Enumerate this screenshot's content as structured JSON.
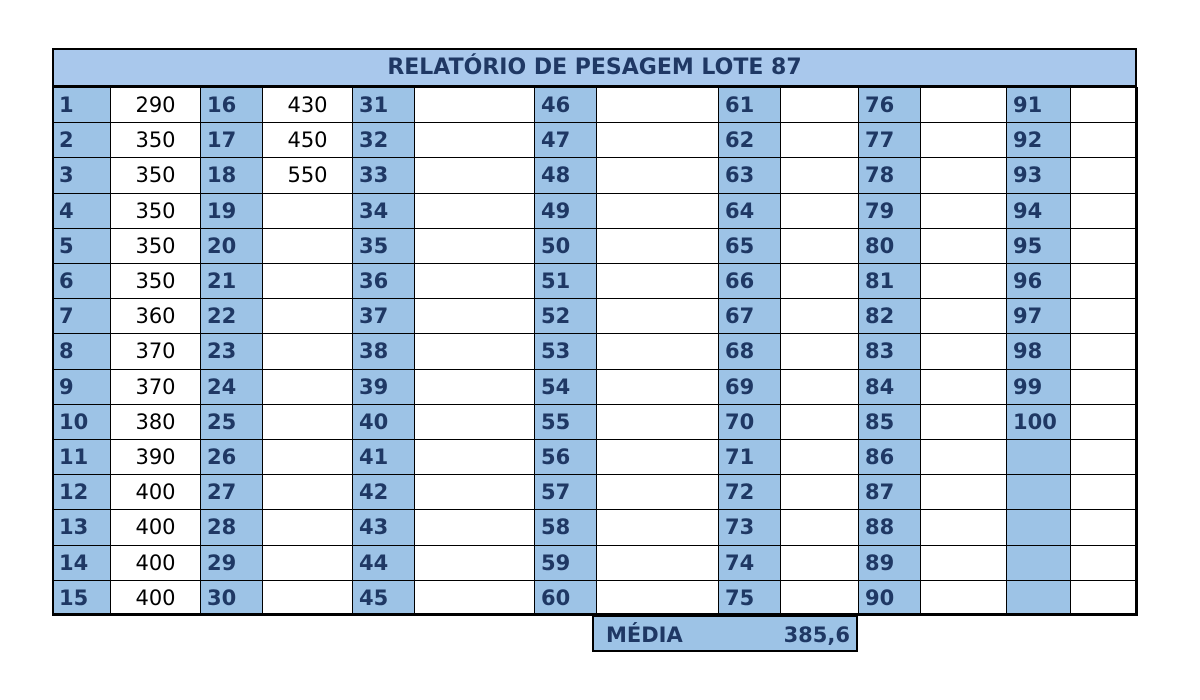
{
  "table": {
    "title": "RELATÓRIO DE PESAGEM LOTE 87",
    "groups": [
      [
        {
          "id": 1,
          "weight": 290
        },
        {
          "id": 2,
          "weight": 350
        },
        {
          "id": 3,
          "weight": 350
        },
        {
          "id": 4,
          "weight": 350
        },
        {
          "id": 5,
          "weight": 350
        },
        {
          "id": 6,
          "weight": 350
        },
        {
          "id": 7,
          "weight": 360
        },
        {
          "id": 8,
          "weight": 370
        },
        {
          "id": 9,
          "weight": 370
        },
        {
          "id": 10,
          "weight": 380
        },
        {
          "id": 11,
          "weight": 390
        },
        {
          "id": 12,
          "weight": 400
        },
        {
          "id": 13,
          "weight": 400
        },
        {
          "id": 14,
          "weight": 400
        },
        {
          "id": 15,
          "weight": 400
        }
      ],
      [
        {
          "id": 16,
          "weight": 430
        },
        {
          "id": 17,
          "weight": 450
        },
        {
          "id": 18,
          "weight": 550
        },
        {
          "id": 19
        },
        {
          "id": 20
        },
        {
          "id": 21
        },
        {
          "id": 22
        },
        {
          "id": 23
        },
        {
          "id": 24
        },
        {
          "id": 25
        },
        {
          "id": 26
        },
        {
          "id": 27
        },
        {
          "id": 28
        },
        {
          "id": 29
        },
        {
          "id": 30
        }
      ],
      [
        {
          "id": 31
        },
        {
          "id": 32
        },
        {
          "id": 33
        },
        {
          "id": 34
        },
        {
          "id": 35
        },
        {
          "id": 36
        },
        {
          "id": 37
        },
        {
          "id": 38
        },
        {
          "id": 39
        },
        {
          "id": 40
        },
        {
          "id": 41
        },
        {
          "id": 42
        },
        {
          "id": 43
        },
        {
          "id": 44
        },
        {
          "id": 45
        }
      ],
      [
        {
          "id": 46
        },
        {
          "id": 47
        },
        {
          "id": 48
        },
        {
          "id": 49
        },
        {
          "id": 50
        },
        {
          "id": 51
        },
        {
          "id": 52
        },
        {
          "id": 53
        },
        {
          "id": 54
        },
        {
          "id": 55
        },
        {
          "id": 56
        },
        {
          "id": 57
        },
        {
          "id": 58
        },
        {
          "id": 59
        },
        {
          "id": 60
        }
      ],
      [
        {
          "id": 61
        },
        {
          "id": 62
        },
        {
          "id": 63
        },
        {
          "id": 64
        },
        {
          "id": 65
        },
        {
          "id": 66
        },
        {
          "id": 67
        },
        {
          "id": 68
        },
        {
          "id": 69
        },
        {
          "id": 70
        },
        {
          "id": 71
        },
        {
          "id": 72
        },
        {
          "id": 73
        },
        {
          "id": 74
        },
        {
          "id": 75
        }
      ],
      [
        {
          "id": 76
        },
        {
          "id": 77
        },
        {
          "id": 78
        },
        {
          "id": 79
        },
        {
          "id": 80
        },
        {
          "id": 81
        },
        {
          "id": 82
        },
        {
          "id": 83
        },
        {
          "id": 84
        },
        {
          "id": 85
        },
        {
          "id": 86
        },
        {
          "id": 87
        },
        {
          "id": 88
        },
        {
          "id": 89
        },
        {
          "id": 90
        }
      ],
      [
        {
          "id": 91
        },
        {
          "id": 92
        },
        {
          "id": 93
        },
        {
          "id": 94
        },
        {
          "id": 95
        },
        {
          "id": 96
        },
        {
          "id": 97
        },
        {
          "id": 98
        },
        {
          "id": 99
        },
        {
          "id": 100
        }
      ]
    ],
    "summary": {
      "label": "MÉDIA",
      "value": "385,6"
    }
  }
}
